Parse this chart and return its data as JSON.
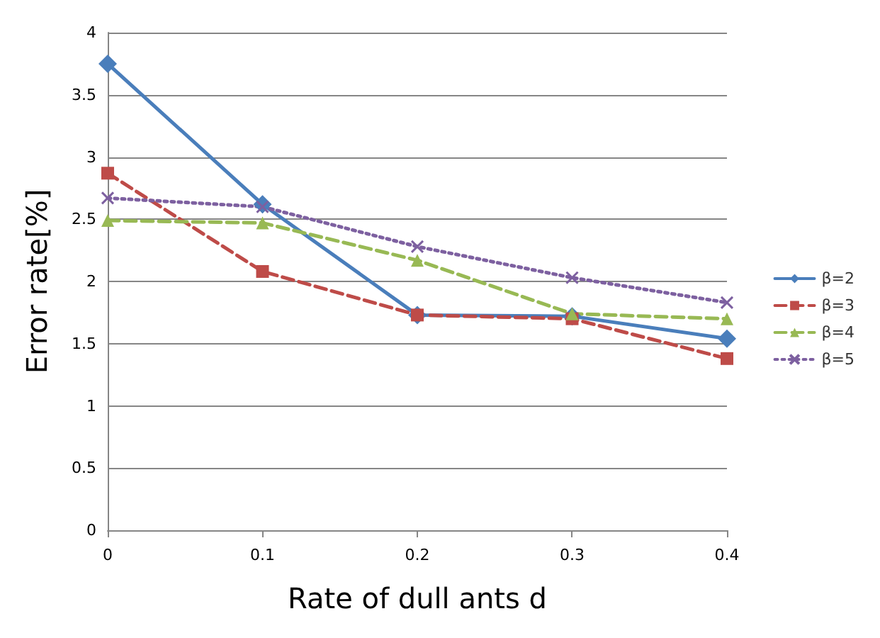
{
  "chart_data": {
    "type": "line",
    "xlabel": "Rate of dull ants d",
    "ylabel": "Error rate[%]",
    "x": [
      0,
      0.1,
      0.2,
      0.3,
      0.4
    ],
    "series": [
      {
        "name": "β=2",
        "color": "#4a7ebb",
        "marker": "diamond",
        "line_style": "solid",
        "values": [
          3.75,
          2.62,
          1.73,
          1.72,
          1.54
        ]
      },
      {
        "name": "β=3",
        "color": "#be4b48",
        "marker": "square",
        "line_style": "dashed",
        "values": [
          2.87,
          2.08,
          1.73,
          1.7,
          1.38
        ]
      },
      {
        "name": "β=4",
        "color": "#98b954",
        "marker": "triangle",
        "line_style": "dashed",
        "values": [
          2.49,
          2.47,
          2.17,
          1.74,
          1.7
        ]
      },
      {
        "name": "β=5",
        "color": "#7d60a0",
        "marker": "cross",
        "line_style": "dotted",
        "values": [
          2.67,
          2.6,
          2.28,
          2.03,
          1.83
        ]
      }
    ],
    "xlim": [
      0,
      0.4
    ],
    "xticks": [
      0,
      0.1,
      0.2,
      0.3,
      0.4
    ],
    "ylim": [
      0,
      4
    ],
    "yticks": [
      0,
      0.5,
      1,
      1.5,
      2,
      2.5,
      3,
      3.5,
      4
    ],
    "grid": "y",
    "legend": "right"
  }
}
